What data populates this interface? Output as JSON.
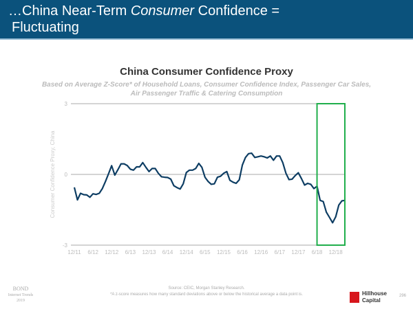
{
  "header": {
    "title_pre": "…China Near-Term ",
    "title_em": "Consumer",
    "title_post": " Confidence =",
    "title_line2": "Fluctuating"
  },
  "footer": {
    "source": "Source: CEIC, Morgan Stanley Research.",
    "note": "*A z-score measures how many standard deviations above or below the historical average a data point is.",
    "bond": "BOND",
    "bond_sub1": "Internet Trends",
    "bond_sub2": "2019",
    "logo_line1": "Hillhouse",
    "logo_line2": "Capital",
    "page": "296"
  },
  "chart_data": {
    "type": "line",
    "title": "China Consumer Confidence Proxy",
    "subtitle_line1": "Based on Average Z-Score* of Household Loans, Consumer Confidence Index, Passenger Car Sales,",
    "subtitle_line2": "Air Passenger Traffic & Catering Consumption",
    "ylabel": "Consumer Confidence Proxy, China",
    "xlabel": "",
    "ylim": [
      -3,
      3
    ],
    "yticks": [
      "3",
      "0",
      "-3"
    ],
    "xticks": [
      "12/11",
      "6/12",
      "12/12",
      "6/13",
      "12/13",
      "6/14",
      "12/14",
      "6/15",
      "12/15",
      "6/16",
      "12/16",
      "6/17",
      "12/17",
      "6/18",
      "12/18"
    ],
    "grid": "horizontal",
    "line_color": "#0d3d63",
    "highlight": {
      "from": "6/18",
      "to": "3/19",
      "color": "#1fae4b"
    },
    "x_start": "12/11",
    "x_step": "monthly",
    "values": [
      -0.55,
      -1.08,
      -0.8,
      -0.86,
      -0.87,
      -0.97,
      -0.82,
      -0.85,
      -0.8,
      -0.6,
      -0.3,
      0.03,
      0.37,
      -0.03,
      0.2,
      0.45,
      0.45,
      0.38,
      0.22,
      0.18,
      0.32,
      0.32,
      0.5,
      0.3,
      0.12,
      0.25,
      0.25,
      0.05,
      -0.1,
      -0.12,
      -0.13,
      -0.2,
      -0.48,
      -0.56,
      -0.62,
      -0.4,
      0.08,
      0.18,
      0.18,
      0.25,
      0.47,
      0.3,
      -0.12,
      -0.3,
      -0.42,
      -0.4,
      -0.12,
      -0.08,
      0.05,
      0.12,
      -0.25,
      -0.33,
      -0.38,
      -0.23,
      0.4,
      0.72,
      0.88,
      0.9,
      0.72,
      0.75,
      0.78,
      0.75,
      0.7,
      0.78,
      0.6,
      0.78,
      0.78,
      0.5,
      0.05,
      -0.22,
      -0.2,
      -0.05,
      0.07,
      -0.18,
      -0.45,
      -0.38,
      -0.42,
      -0.6,
      -0.5,
      -1.1,
      -1.15,
      -1.6,
      -1.82,
      -2.05,
      -1.8,
      -1.3,
      -1.12,
      -1.1
    ]
  }
}
